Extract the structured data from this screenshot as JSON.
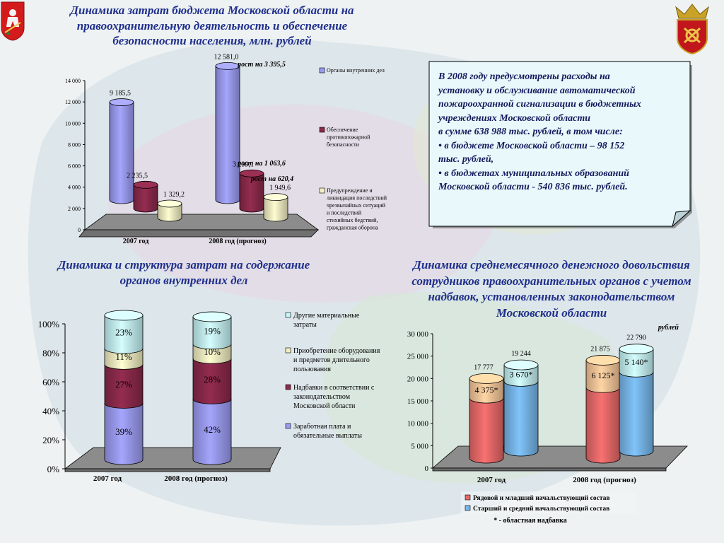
{
  "colors": {
    "heading": "#1f2f8c",
    "blue_bar": "#9b9bf2",
    "maroon_bar": "#8b2a4b",
    "cream_bar": "#f3efc3",
    "cyan_bar": "#c6f5f8",
    "red_bar": "#e86a6a",
    "orange_bar": "#f8c79a",
    "lightblue_bar": "#78b7ea",
    "note_bg": "#e8f8fb"
  },
  "icons": {
    "left_emblem": "moscow-region-coat-of-arms-icon",
    "right_emblem": "police-emblem-icon"
  },
  "headings": {
    "main": [
      "Динамика затрат бюджета Московской области на",
      "правоохранительную деятельность и обеспечение",
      "безопасности населения, млн. рублей"
    ],
    "structure": [
      "Динамика и структура затрат на содержание",
      "органов внутренних дел"
    ],
    "allowance": [
      "Динамика среднемесячного денежного довольствия",
      "сотрудников правоохранительных органов с учетом",
      "надбавок, установленных законодательством",
      "Московской области"
    ]
  },
  "note": {
    "lines": [
      "В 2008 году предусмотрены расходы на",
      "установку и обслуживание автоматической",
      "пожароохранной сигнализации в бюджетных",
      "учреждениях Московской области",
      "в сумме 638 988 тыс. рублей, в том числе:",
      "• в бюджете Московской области – 98 152",
      "тыс. рублей,",
      "• в бюджетах муниципальных образований",
      "Московской области - 540 836 тыс. рублей."
    ]
  },
  "chart_data": [
    {
      "type": "bar",
      "title": "",
      "categories": [
        "2007 год",
        "2008 год (прогноз)"
      ],
      "ylim": [
        0,
        14000
      ],
      "y_ticks": [
        "0",
        "2 000",
        "4 000",
        "6 000",
        "8 000",
        "10 000",
        "12 000",
        "14 000"
      ],
      "series": [
        {
          "name": "Органы внутренних дел",
          "values": [
            9185.5,
            12581.0
          ],
          "labels": [
            "9 185,5",
            "12 581,0"
          ],
          "growth_label": "рост на 3 395,5"
        },
        {
          "name": "Обеспечение противопожарной безопасности",
          "values": [
            2235.5,
            3299.1
          ],
          "labels": [
            "2 235,5",
            "3 299,1"
          ],
          "growth_label": "рост на 1 063,6"
        },
        {
          "name": "Предупреждение и ликвидация последствий чрезвычайных ситуаций и последствий стихийных бедствий, гражданская оборона",
          "values": [
            1329.2,
            1949.6
          ],
          "labels": [
            "1 329,2",
            "1 949,6"
          ],
          "growth_label": "рост на 620,4"
        }
      ],
      "legend_position": "right",
      "grid": false
    },
    {
      "type": "bar",
      "stacked": true,
      "percent": true,
      "categories": [
        "2007 год",
        "2008 год (прогноз)"
      ],
      "ylim": [
        0,
        100
      ],
      "y_ticks": [
        "0%",
        "20%",
        "40%",
        "60%",
        "80%",
        "100%"
      ],
      "series": [
        {
          "name": "Заработная плата и обязательные выплаты",
          "values": [
            39,
            42
          ],
          "labels": [
            "39%",
            "42%"
          ]
        },
        {
          "name": "Надбавки в соответствии с законодательством Московской области",
          "values": [
            27,
            28
          ],
          "labels": [
            "27%",
            "28%"
          ]
        },
        {
          "name": "Приобретение оборудования и предметов длительного пользования",
          "values": [
            11,
            10
          ],
          "labels": [
            "11%",
            "10%"
          ]
        },
        {
          "name": "Другие материальные затраты",
          "values": [
            23,
            19
          ],
          "labels": [
            "23%",
            "19%"
          ]
        }
      ],
      "legend_order": [
        "Другие материальные затраты",
        "Приобретение оборудования и предметов длительного пользования",
        "Надбавки в соответствии с законодательством Московской области",
        "Заработная плата и обязательные выплаты"
      ],
      "legend_position": "right",
      "grid": false
    },
    {
      "type": "bar",
      "stacked": true,
      "unit": "рублей",
      "categories": [
        "2007 год",
        "2008 год (прогноз)"
      ],
      "ylim": [
        0,
        30000
      ],
      "y_ticks": [
        "0",
        "5 000",
        "10 000",
        "15 000",
        "20 000",
        "25 000",
        "30 000"
      ],
      "series": [
        {
          "name": "Рядовой и младший начальствующий состав",
          "totals": [
            17777,
            21875
          ],
          "total_labels": [
            "17 777",
            "21 875"
          ],
          "allowances": [
            4375,
            6125
          ],
          "allowance_labels": [
            "4 375*",
            "6 125*"
          ]
        },
        {
          "name": "Старший и средний начальствующий состав",
          "totals": [
            19244,
            22790
          ],
          "total_labels": [
            "19 244",
            "22 790"
          ],
          "allowances": [
            3670,
            5140
          ],
          "allowance_labels": [
            "3 670*",
            "5 140*"
          ]
        }
      ],
      "footnote": "* - областная надбавка",
      "legend_position": "bottom",
      "grid": false
    }
  ]
}
